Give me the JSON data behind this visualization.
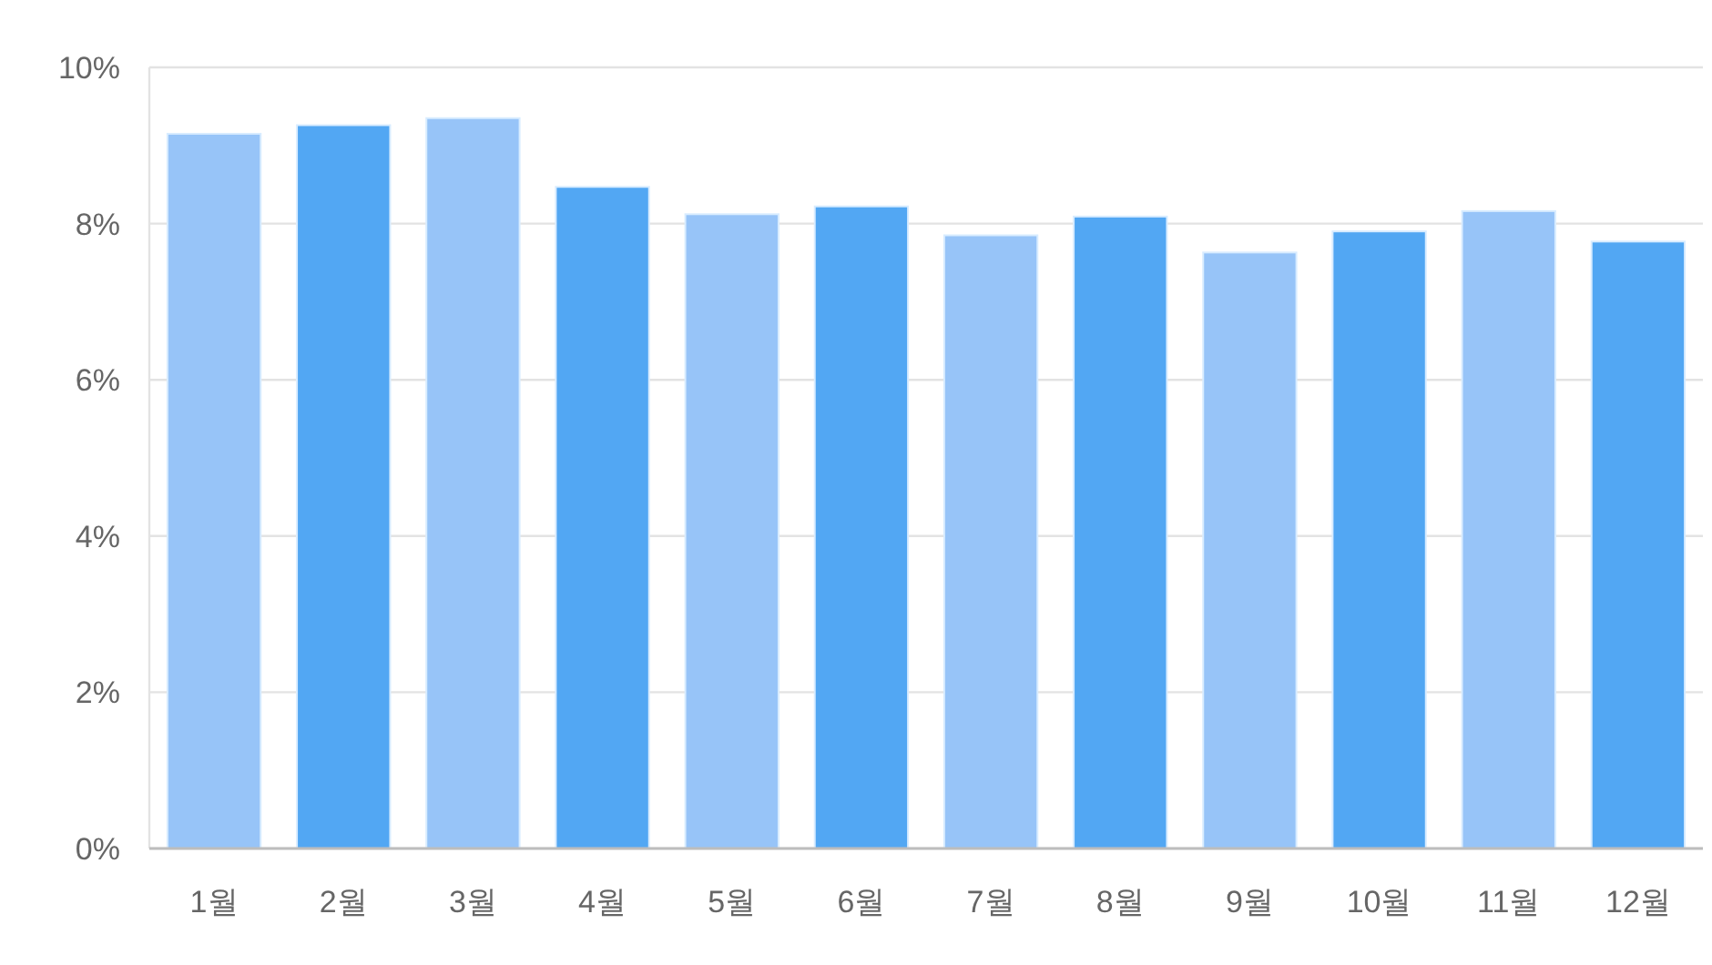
{
  "chart_data": {
    "type": "bar",
    "categories": [
      "1월",
      "2월",
      "3월",
      "4월",
      "5월",
      "6월",
      "7월",
      "8월",
      "9월",
      "10월",
      "11월",
      "12월"
    ],
    "values": [
      9.15,
      9.26,
      9.35,
      8.47,
      8.12,
      8.22,
      7.85,
      8.09,
      7.63,
      7.9,
      8.16,
      7.77
    ],
    "colors": [
      "#97c4f8",
      "#52a7f3",
      "#97c4f8",
      "#52a7f3",
      "#97c4f8",
      "#52a7f3",
      "#97c4f8",
      "#52a7f3",
      "#97c4f8",
      "#52a7f3",
      "#97c4f8",
      "#52a7f3"
    ],
    "ylim": [
      0,
      10
    ],
    "yticks": [
      {
        "value": 0,
        "label": "0%"
      },
      {
        "value": 2,
        "label": "2%"
      },
      {
        "value": 4,
        "label": "4%"
      },
      {
        "value": 6,
        "label": "6%"
      },
      {
        "value": 8,
        "label": "8%"
      },
      {
        "value": 10,
        "label": "10%"
      }
    ],
    "grid": "y"
  }
}
